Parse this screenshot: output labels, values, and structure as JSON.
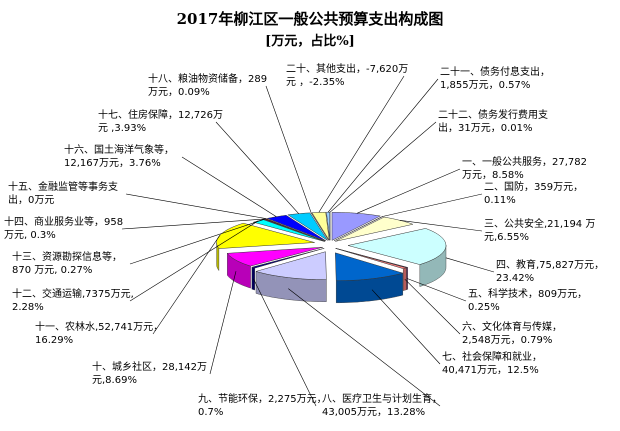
{
  "chart_data": {
    "type": "pie",
    "title": "2017年柳江区一般公共预算支出构成图",
    "subtitle": "[万元，占比%]",
    "slices": [
      {
        "label_lines": [
          "一、一般公共服务，27,782",
          "万元，8.58%"
        ],
        "value": 27782,
        "percent": 8.58,
        "color": "#9999ff"
      },
      {
        "label_lines": [
          "二、国防，359万元，",
          "0.11%"
        ],
        "value": 359,
        "percent": 0.11,
        "color": "#993366"
      },
      {
        "label_lines": [
          "三、公共安全,21,194 万",
          "元,6.55%"
        ],
        "value": 21194,
        "percent": 6.55,
        "color": "#ffffcc"
      },
      {
        "label_lines": [
          "四、教育,75,827万元，",
          "23.42%"
        ],
        "value": 75827,
        "percent": 23.42,
        "color": "#ccffff"
      },
      {
        "label_lines": [
          "五、科学技术，809万元，",
          "0.25%"
        ],
        "value": 809,
        "percent": 0.25,
        "color": "#660066"
      },
      {
        "label_lines": [
          "六、文化体育与传媒，",
          "2,548万元，0.79%"
        ],
        "value": 2548,
        "percent": 0.79,
        "color": "#ff8080"
      },
      {
        "label_lines": [
          "七、社会保障和就业，",
          "40,471万元，12.5%"
        ],
        "value": 40471,
        "percent": 12.5,
        "color": "#0066cc"
      },
      {
        "label_lines": [
          "八、医疗卫生与计划生育，",
          "43,005万元，13.28%"
        ],
        "value": 43005,
        "percent": 13.28,
        "color": "#ccccff"
      },
      {
        "label_lines": [
          "九、节能环保，2,275万元，",
          "0.7%"
        ],
        "value": 2275,
        "percent": 0.7,
        "color": "#000080"
      },
      {
        "label_lines": [
          "十、城乡社区，28,142万",
          "元,8.69%"
        ],
        "value": 28142,
        "percent": 8.69,
        "color": "#ff00ff"
      },
      {
        "label_lines": [
          "十一、农林水,52,741万元，",
          "16.29%"
        ],
        "value": 52741,
        "percent": 16.29,
        "color": "#ffff00"
      },
      {
        "label_lines": [
          "十二、交通运输,7375万元,",
          "2.28%"
        ],
        "value": 7375,
        "percent": 2.28,
        "color": "#00ffff"
      },
      {
        "label_lines": [
          "十三、资源勘探信息等，",
          "870 万元, 0.27%"
        ],
        "value": 870,
        "percent": 0.27,
        "color": "#800080"
      },
      {
        "label_lines": [
          "十四、商业服务业等，958",
          "万元, 0.3%"
        ],
        "value": 958,
        "percent": 0.3,
        "color": "#800000"
      },
      {
        "label_lines": [
          "十五、金融监管等事务支",
          "出，0万元"
        ],
        "value": 0,
        "percent": 0,
        "color": "#008080"
      },
      {
        "label_lines": [
          "十六、国土海洋气象等，",
          "12,167万元，3.76%"
        ],
        "value": 12167,
        "percent": 3.76,
        "color": "#0000ff"
      },
      {
        "label_lines": [
          "十七、住房保障，12,726万",
          "元 ,3.93%"
        ],
        "value": 12726,
        "percent": 3.93,
        "color": "#00ccff"
      },
      {
        "label_lines": [
          "十八、粮油物资储备，289",
          "万元，0.09%"
        ],
        "value": 289,
        "percent": 0.09,
        "color": "#ccffcc"
      },
      {
        "label_lines": [
          "二十、其他支出，-7,620万",
          "元 ，-2.35%"
        ],
        "value": -7620,
        "percent": -2.35,
        "color": "#ffff99"
      },
      {
        "label_lines": [
          "二十一、债务付息支出，",
          "1,855万元，0.57%"
        ],
        "value": 1855,
        "percent": 0.57,
        "color": "#99ccff"
      },
      {
        "label_lines": [
          "二十二、债务发行费用支",
          "出，31万元，0.01%"
        ],
        "value": 31,
        "percent": 0.01,
        "color": "#ff99cc"
      }
    ]
  }
}
